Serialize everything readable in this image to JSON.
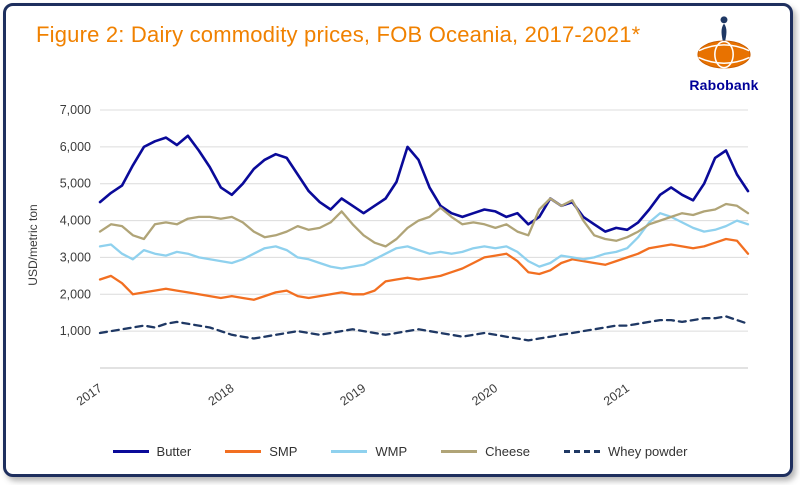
{
  "frame": {
    "border_color": "#1e2f5e"
  },
  "header": {
    "title": "Figure 2: Dairy commodity prices, FOB Oceania, 2017-2021*",
    "title_color": "#f08100"
  },
  "logo": {
    "brand": "Rabobank",
    "brand_color": "#000099",
    "mark_color": "#e87200"
  },
  "chart_data": {
    "type": "line",
    "title": "Figure 2: Dairy commodity prices, FOB Oceania, 2017-2021*",
    "xlabel": "",
    "ylabel": "USD/metric ton",
    "ylim": [
      0,
      7000
    ],
    "ytick_step": 1000,
    "ytick_labels": [
      "1,000",
      "2,000",
      "3,000",
      "4,000",
      "5,000",
      "6,000",
      "7,000"
    ],
    "x_unit": "month",
    "x_tick_labels": [
      "2017",
      "2018",
      "2019",
      "2020",
      "2021"
    ],
    "x_tick_indices": [
      0,
      12,
      24,
      36,
      48
    ],
    "grid": true,
    "grid_color": "#dcdcdc",
    "legend_position": "bottom",
    "series": [
      {
        "name": "Butter",
        "color": "#0a0a99",
        "dash": false,
        "values": [
          4500,
          4750,
          4950,
          5500,
          6000,
          6150,
          6250,
          6050,
          6300,
          5900,
          5450,
          4900,
          4700,
          5000,
          5400,
          5650,
          5800,
          5700,
          5250,
          4800,
          4500,
          4300,
          4600,
          4400,
          4200,
          4400,
          4600,
          5050,
          6000,
          5650,
          4900,
          4400,
          4200,
          4100,
          4200,
          4300,
          4250,
          4100,
          4200,
          3900,
          4100,
          4600,
          4400,
          4500,
          4100,
          3900,
          3700,
          3800,
          3750,
          3950,
          4300,
          4700,
          4900,
          4700,
          4550,
          5000,
          5700,
          5900,
          5250,
          4800
        ]
      },
      {
        "name": "SMP",
        "color": "#f26f21",
        "dash": false,
        "values": [
          2400,
          2500,
          2300,
          2000,
          2050,
          2100,
          2150,
          2100,
          2050,
          2000,
          1950,
          1900,
          1950,
          1900,
          1850,
          1950,
          2050,
          2100,
          1950,
          1900,
          1950,
          2000,
          2050,
          2000,
          2000,
          2100,
          2350,
          2400,
          2450,
          2400,
          2450,
          2500,
          2600,
          2700,
          2850,
          3000,
          3050,
          3100,
          2900,
          2600,
          2550,
          2650,
          2850,
          2950,
          2900,
          2850,
          2800,
          2900,
          3000,
          3100,
          3250,
          3300,
          3350,
          3300,
          3250,
          3300,
          3400,
          3500,
          3450,
          3100
        ]
      },
      {
        "name": "WMP",
        "color": "#8fd1ee",
        "dash": false,
        "values": [
          3300,
          3350,
          3100,
          2950,
          3200,
          3100,
          3050,
          3150,
          3100,
          3000,
          2950,
          2900,
          2850,
          2950,
          3100,
          3250,
          3300,
          3200,
          3000,
          2950,
          2850,
          2750,
          2700,
          2750,
          2800,
          2950,
          3100,
          3250,
          3300,
          3200,
          3100,
          3150,
          3100,
          3150,
          3250,
          3300,
          3250,
          3300,
          3150,
          2900,
          2750,
          2850,
          3050,
          3000,
          2950,
          3000,
          3100,
          3150,
          3250,
          3550,
          3950,
          4200,
          4100,
          3950,
          3800,
          3700,
          3750,
          3850,
          4000,
          3900
        ]
      },
      {
        "name": "Cheese",
        "color": "#b0a477",
        "dash": false,
        "values": [
          3700,
          3900,
          3850,
          3600,
          3500,
          3900,
          3950,
          3900,
          4050,
          4100,
          4100,
          4050,
          4100,
          3950,
          3700,
          3550,
          3600,
          3700,
          3850,
          3750,
          3800,
          3950,
          4250,
          3900,
          3600,
          3400,
          3300,
          3500,
          3800,
          4000,
          4100,
          4350,
          4100,
          3900,
          3950,
          3900,
          3800,
          3900,
          3700,
          3600,
          4300,
          4600,
          4400,
          4550,
          4000,
          3600,
          3500,
          3450,
          3550,
          3700,
          3900,
          4000,
          4100,
          4200,
          4150,
          4250,
          4300,
          4450,
          4400,
          4200
        ]
      },
      {
        "name": "Whey powder",
        "color": "#1f3864",
        "dash": true,
        "values": [
          950,
          1000,
          1050,
          1100,
          1150,
          1100,
          1200,
          1250,
          1200,
          1150,
          1100,
          1000,
          900,
          850,
          800,
          850,
          900,
          950,
          1000,
          950,
          900,
          950,
          1000,
          1050,
          1000,
          950,
          900,
          950,
          1000,
          1050,
          1000,
          950,
          900,
          850,
          900,
          950,
          900,
          850,
          800,
          750,
          800,
          850,
          900,
          950,
          1000,
          1050,
          1100,
          1150,
          1150,
          1200,
          1250,
          1300,
          1300,
          1250,
          1300,
          1350,
          1350,
          1400,
          1300,
          1200
        ]
      }
    ]
  }
}
